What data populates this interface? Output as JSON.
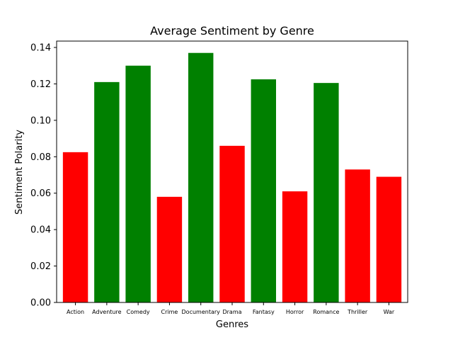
{
  "chart_data": {
    "type": "bar",
    "title": "Average Sentiment by Genre",
    "xlabel": "Genres",
    "ylabel": "Sentiment Polarity",
    "categories": [
      "Action",
      "Adventure",
      "Comedy",
      "Crime",
      "Documentary",
      "Drama",
      "Fantasy",
      "Horror",
      "Romance",
      "Thriller",
      "War"
    ],
    "values": [
      0.0825,
      0.121,
      0.13,
      0.058,
      0.137,
      0.086,
      0.1225,
      0.061,
      0.1205,
      0.073,
      0.069
    ],
    "bar_colors": [
      "#ff0000",
      "#008000",
      "#008000",
      "#ff0000",
      "#008000",
      "#ff0000",
      "#008000",
      "#ff0000",
      "#008000",
      "#ff0000",
      "#ff0000"
    ],
    "ylim": [
      0,
      0.1435
    ],
    "yticks": [
      "0.00",
      "0.02",
      "0.04",
      "0.06",
      "0.08",
      "0.10",
      "0.12",
      "0.14"
    ],
    "grid": false,
    "legend": "none"
  }
}
